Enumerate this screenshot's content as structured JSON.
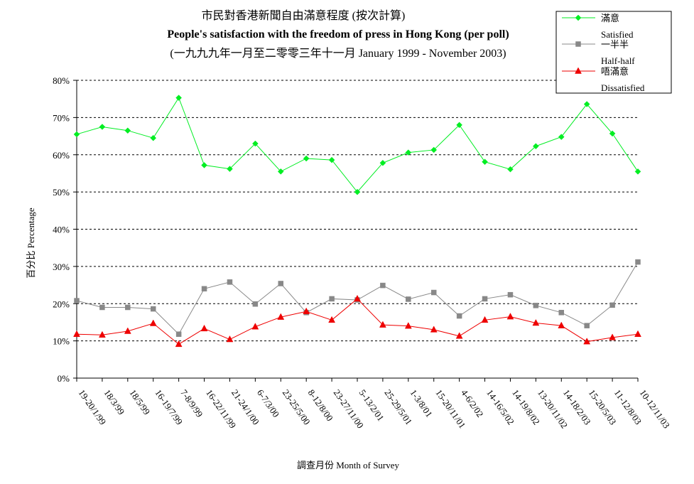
{
  "chart_data": {
    "type": "line",
    "title_zh": "市民對香港新聞自由滿意程度 (按次計算)",
    "title_en": "People's satisfaction with the freedom of press in Hong Kong (per poll)",
    "subtitle": "(一九九九年一月至二零零三年十一月 January 1999 - November 2003)",
    "xlabel": "調查月份 Month of Survey",
    "ylabel": "百分比 Percentage",
    "ylim": [
      0,
      80
    ],
    "yticks": [
      "0%",
      "10%",
      "20%",
      "30%",
      "40%",
      "50%",
      "60%",
      "70%",
      "80%"
    ],
    "grid": true,
    "legend_position": "top-right",
    "categories": [
      "19-20/1/99",
      "18/3/99",
      "18/5/99",
      "16-19/7/99",
      "7-8/9/99",
      "16-22/11/99",
      "21-24/1/00",
      "6-7/3/00",
      "23-25/5/00",
      "8-12/8/00",
      "23-27/11/00",
      "5-13/2/01",
      "25-29/5/01",
      "1-3/8/01",
      "15-20/11/01",
      "4-6/2/02",
      "14-16/5/02",
      "14-19/8/02",
      "13-20/11/02",
      "14-18/2/03",
      "15-20/5/03",
      "11-12/8/03",
      "10-12/11/03"
    ],
    "series": [
      {
        "name": "滿意",
        "name_en": "Satisfied",
        "color": "#00ee22",
        "marker": "diamond",
        "values": [
          65.5,
          67.5,
          66.5,
          64.5,
          75.3,
          57.2,
          56.2,
          63.0,
          55.5,
          59.0,
          58.6,
          50.0,
          57.8,
          60.6,
          61.3,
          68.0,
          58.1,
          56.1,
          62.3,
          64.8,
          73.6,
          65.7,
          55.5
        ]
      },
      {
        "name": "一半半",
        "name_en": "Half-half",
        "color": "#888888",
        "marker": "square",
        "values": [
          20.8,
          19.0,
          19.0,
          18.6,
          11.8,
          24.0,
          25.8,
          19.9,
          25.4,
          17.6,
          21.3,
          21.0,
          24.9,
          21.2,
          23.0,
          16.7,
          21.3,
          22.4,
          19.5,
          17.6,
          14.1,
          19.6,
          31.2
        ]
      },
      {
        "name": "唔滿意",
        "name_en": "Dissatisfied",
        "color": "#ee0000",
        "marker": "triangle",
        "values": [
          11.8,
          11.6,
          12.6,
          14.7,
          9.1,
          13.3,
          10.4,
          13.8,
          16.4,
          17.9,
          15.6,
          21.3,
          14.3,
          14.0,
          13.0,
          11.3,
          15.6,
          16.5,
          14.8,
          14.1,
          9.8,
          10.9,
          11.8
        ]
      }
    ]
  }
}
